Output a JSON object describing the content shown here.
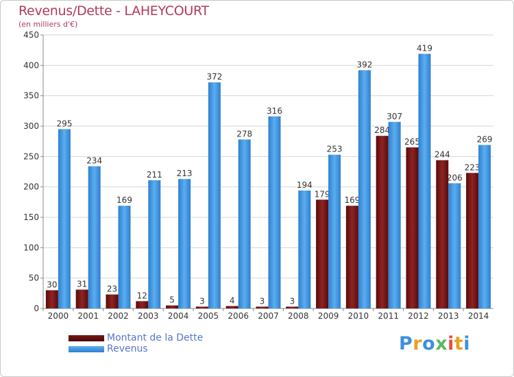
{
  "chart_data": {
    "type": "bar",
    "title": "Revenus/Dette - LAHEYCOURT",
    "subtitle": "(en milliers d'€)",
    "categories": [
      "2000",
      "2001",
      "2002",
      "2003",
      "2004",
      "2005",
      "2006",
      "2007",
      "2008",
      "2009",
      "2010",
      "2011",
      "2012",
      "2013",
      "2014"
    ],
    "series": [
      {
        "name": "Montant de la Dette",
        "color": "#7a1515",
        "values": [
          30,
          31,
          23,
          12,
          5,
          3,
          4,
          3,
          3,
          179,
          169,
          284,
          265,
          244,
          223
        ]
      },
      {
        "name": "Revenus",
        "color": "#3d97e0",
        "values": [
          295,
          234,
          169,
          211,
          213,
          372,
          278,
          316,
          194,
          253,
          392,
          307,
          419,
          206,
          269
        ]
      }
    ],
    "ylim": [
      0,
      450
    ],
    "yticks": [
      0,
      50,
      100,
      150,
      200,
      250,
      300,
      350,
      400,
      450
    ],
    "grid": true,
    "legend_position": "bottom-left"
  },
  "logo": {
    "letters": [
      "P",
      "r",
      "o",
      "x",
      "i",
      "t",
      "i"
    ],
    "colors": [
      "#3d8fe0",
      "#e8a020",
      "#3d8fe0",
      "#5cb85c",
      "#e84c3d",
      "#e8a020",
      "#3d8fe0"
    ]
  }
}
